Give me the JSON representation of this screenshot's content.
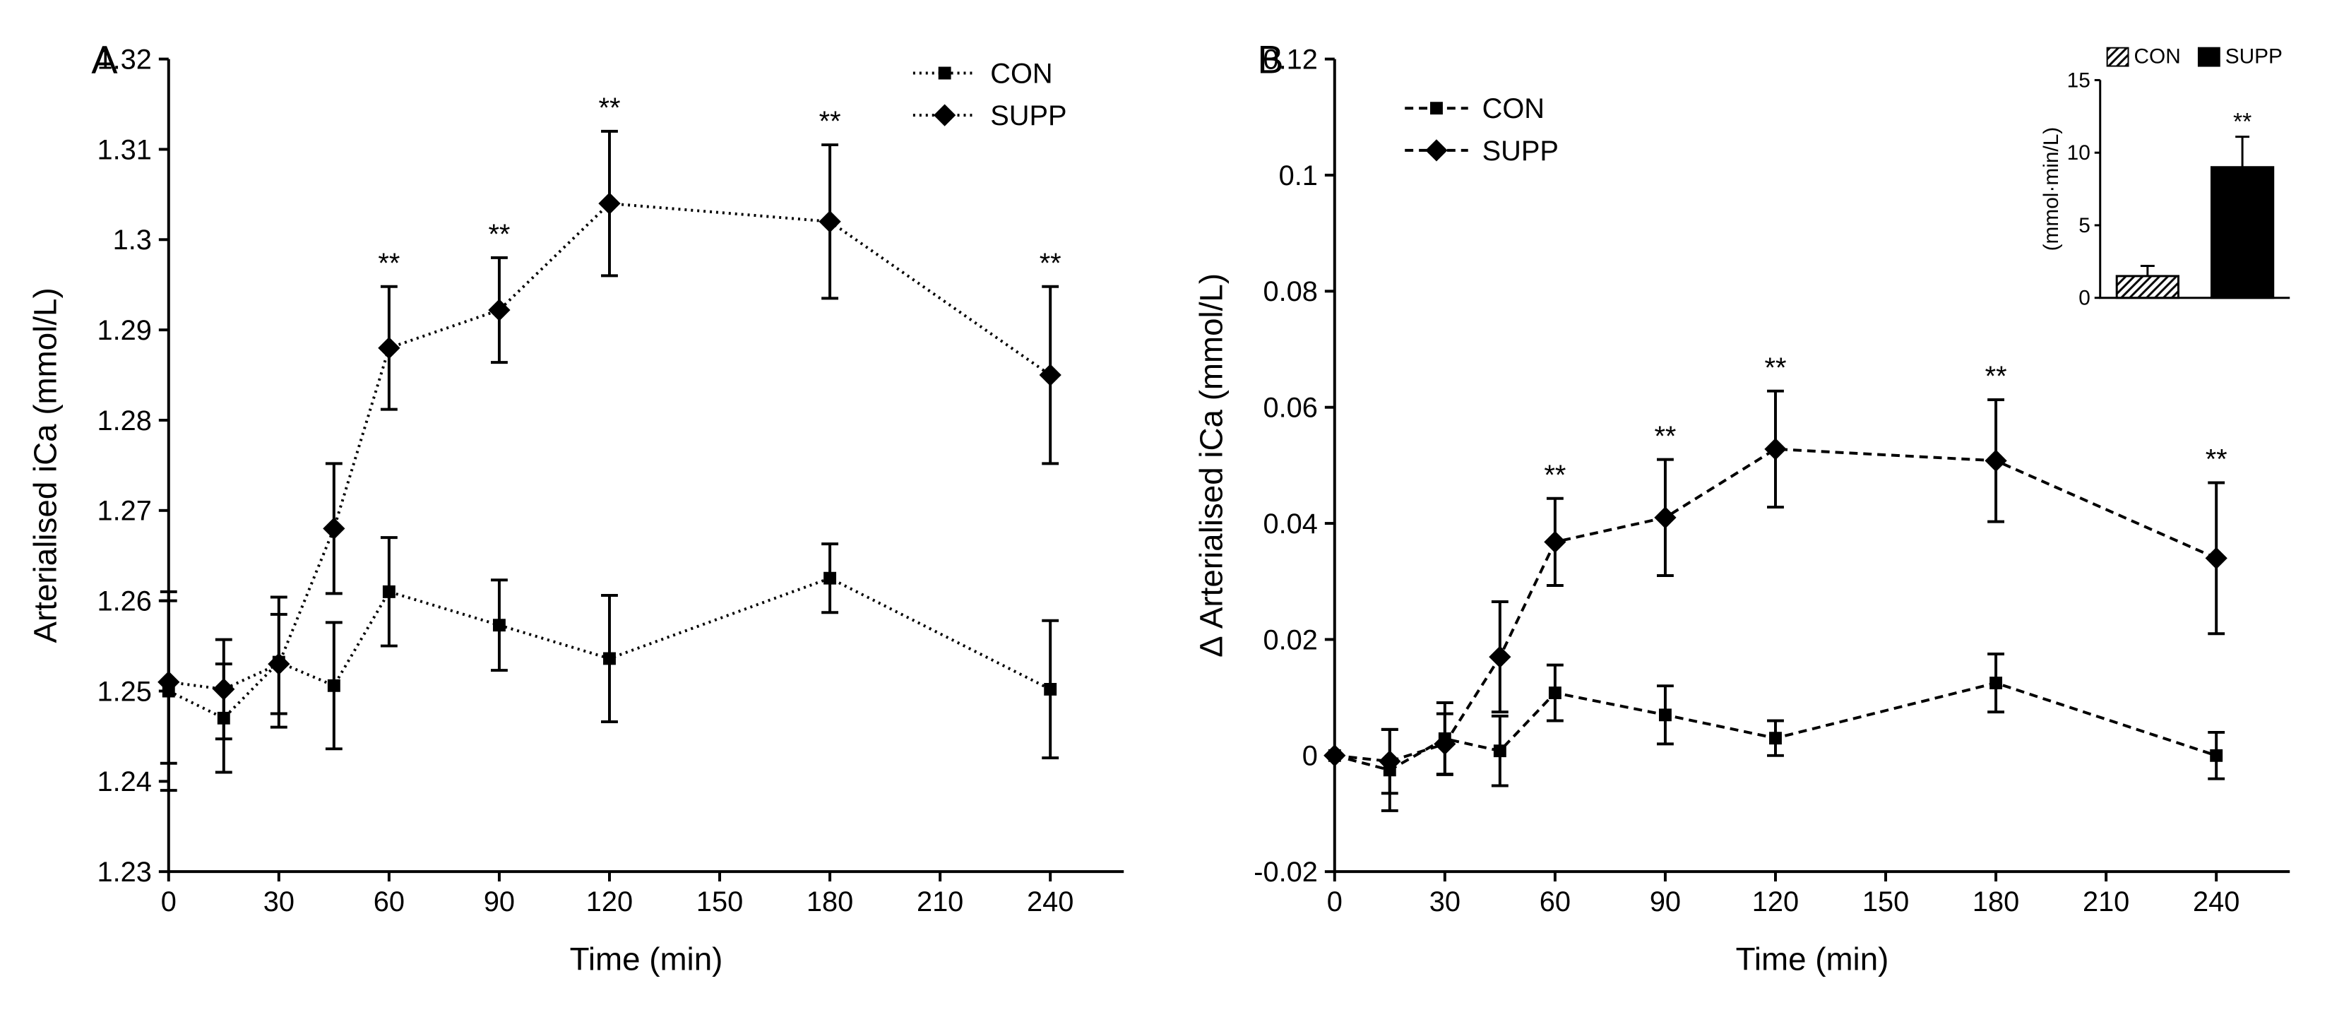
{
  "global": {
    "background_color": "#ffffff",
    "axis_color": "#000000",
    "text_color": "#000000",
    "grid_color": "#ffffff",
    "font_family": "Arial",
    "panel_label_fontsize": 56,
    "axis_label_fontsize": 46,
    "tick_fontsize": 40,
    "legend_fontsize": 40,
    "sig_fontsize": 40
  },
  "panelA": {
    "label": "A",
    "type": "line_scatter",
    "ylabel": "Arterialised iCa (mmol/L)",
    "xlabel": "Time (min)",
    "ylim": [
      1.23,
      1.32
    ],
    "ytick_step": 0.01,
    "yticks": [
      1.23,
      1.24,
      1.25,
      1.26,
      1.27,
      1.28,
      1.29,
      1.3,
      1.31,
      1.32
    ],
    "ytick_labels": [
      "1.23",
      "1.24",
      "1.25",
      "1.26",
      "1.27",
      "1.28",
      "1.29",
      "1.3",
      "1.31",
      "1.32"
    ],
    "xlim": [
      0,
      260
    ],
    "xticks": [
      0,
      30,
      60,
      90,
      120,
      150,
      180,
      210,
      240
    ],
    "xtick_labels": [
      "0",
      "30",
      "60",
      "90",
      "120",
      "150",
      "180",
      "210",
      "240"
    ],
    "line_dash": "3,6",
    "series": {
      "CON": {
        "label": "CON",
        "marker": "square",
        "marker_size": 18,
        "color": "#000000",
        "x": [
          0,
          15,
          30,
          45,
          60,
          90,
          120,
          180,
          240
        ],
        "y": [
          1.25,
          1.247,
          1.2532,
          1.2506,
          1.261,
          1.2573,
          1.2536,
          1.2625,
          1.2502
        ],
        "err": [
          0.011,
          0.006,
          0.0072,
          0.007,
          0.006,
          0.005,
          0.007,
          0.0038,
          0.0076
        ]
      },
      "SUPP": {
        "label": "SUPP",
        "marker": "diamond",
        "marker_size": 22,
        "color": "#000000",
        "x": [
          0,
          15,
          30,
          45,
          60,
          90,
          120,
          180,
          240
        ],
        "y": [
          1.251,
          1.2502,
          1.253,
          1.268,
          1.288,
          1.2922,
          1.304,
          1.302,
          1.285
        ],
        "err": [
          0.009,
          0.0055,
          0.0055,
          0.0072,
          0.0068,
          0.0058,
          0.008,
          0.0085,
          0.0098
        ],
        "sig": [
          null,
          null,
          null,
          null,
          "**",
          "**",
          "**",
          "**",
          "**"
        ]
      }
    },
    "legend_pos": "top-right"
  },
  "panelB": {
    "label": "B",
    "type": "line_scatter",
    "ylabel": "Δ Arterialised iCa (mmol/L)",
    "xlabel": "Time (min)",
    "ylim": [
      -0.02,
      0.12
    ],
    "ytick_step": 0.02,
    "yticks": [
      -0.02,
      0,
      0.02,
      0.04,
      0.06,
      0.08,
      0.1,
      0.12
    ],
    "ytick_labels": [
      "-0.02",
      "0",
      "0.02",
      "0.04",
      "0.06",
      "0.08",
      "0.1",
      "0.12"
    ],
    "xlim": [
      0,
      260
    ],
    "xticks": [
      0,
      30,
      60,
      90,
      120,
      150,
      180,
      210,
      240
    ],
    "xtick_labels": [
      "0",
      "30",
      "60",
      "90",
      "120",
      "150",
      "180",
      "210",
      "240"
    ],
    "line_dash": "12,8",
    "series": {
      "CON": {
        "label": "CON",
        "marker": "square",
        "marker_size": 18,
        "color": "#000000",
        "x": [
          0,
          15,
          30,
          45,
          60,
          90,
          120,
          180,
          240
        ],
        "y": [
          0.0,
          -0.0025,
          0.0029,
          0.0008,
          0.0108,
          0.007,
          0.003,
          0.0125,
          0.0
        ],
        "err": [
          0.0,
          0.007,
          0.0062,
          0.006,
          0.0048,
          0.005,
          0.003,
          0.005,
          0.004
        ]
      },
      "SUPP": {
        "label": "SUPP",
        "marker": "diamond",
        "marker_size": 22,
        "color": "#000000",
        "x": [
          0,
          15,
          30,
          45,
          60,
          90,
          120,
          180,
          240
        ],
        "y": [
          0.0,
          -0.001,
          0.002,
          0.017,
          0.0368,
          0.041,
          0.0528,
          0.0508,
          0.034
        ],
        "err": [
          0.0,
          0.0055,
          0.0052,
          0.0095,
          0.0075,
          0.01,
          0.01,
          0.0105,
          0.013
        ],
        "sig": [
          null,
          null,
          null,
          null,
          "**",
          "**",
          "**",
          "**",
          "**"
        ]
      }
    },
    "legend_pos": "top-left-inner",
    "inset": {
      "type": "bar",
      "ylabel": "(mmol·min/L)",
      "ylim": [
        0,
        15
      ],
      "yticks": [
        0,
        5,
        10,
        15
      ],
      "ytick_labels": [
        "0",
        "5",
        "10",
        "15"
      ],
      "categories": [
        "CON",
        "SUPP"
      ],
      "values": [
        1.5,
        9.0
      ],
      "errors": [
        0.7,
        2.1
      ],
      "fills": [
        "hatch",
        "solid"
      ],
      "colors": [
        "#000000",
        "#000000"
      ],
      "hatch_bg": "#ffffff",
      "sig": [
        null,
        "**"
      ],
      "bar_width": 0.65
    }
  }
}
